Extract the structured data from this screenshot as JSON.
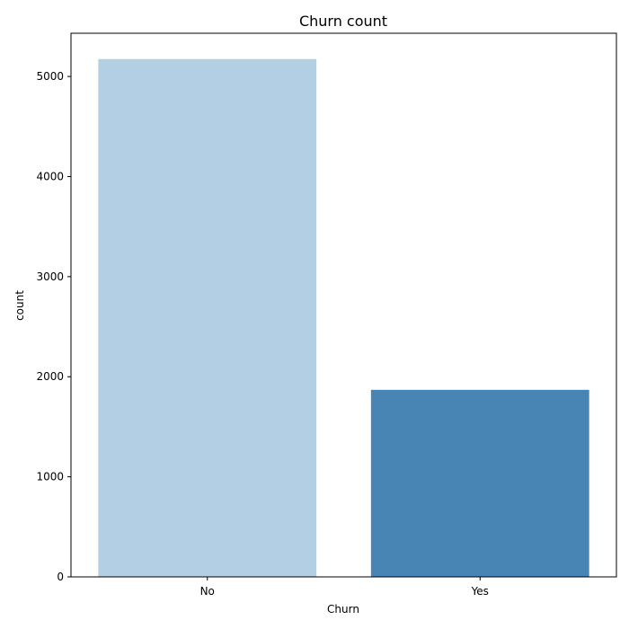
{
  "chart_data": {
    "type": "bar",
    "title": "Churn count",
    "xlabel": "Churn",
    "ylabel": "count",
    "categories": [
      "No",
      "Yes"
    ],
    "values": [
      5174,
      1869
    ],
    "colors": [
      "#b3cfe3",
      "#4884b4"
    ],
    "ylim": [
      0,
      5432
    ],
    "yticks": [
      0,
      1000,
      2000,
      3000,
      4000,
      5000
    ],
    "grid": false,
    "legend": "none"
  }
}
